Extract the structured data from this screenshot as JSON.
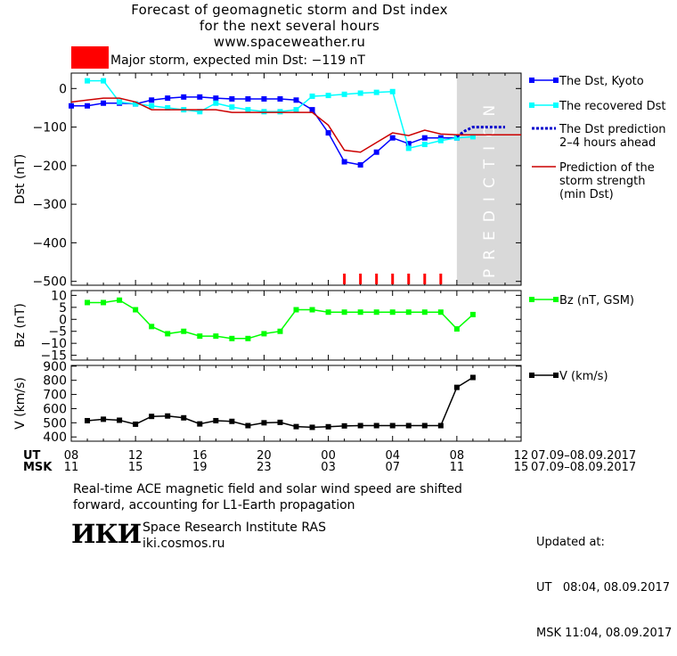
{
  "header": {
    "title": "Forecast of geomagnetic storm and Dst index",
    "subtitle": "for the next several hours",
    "site": "www.spaceweather.ru"
  },
  "storm": {
    "label": "Major storm, expected min Dst: −119 nT",
    "color": "#ff0000"
  },
  "time_axis": {
    "ut_label": "UT",
    "msk_label": "MSK",
    "ut_ticks": [
      "08",
      "12",
      "16",
      "20",
      "00",
      "04",
      "08",
      "12"
    ],
    "msk_ticks": [
      "11",
      "15",
      "19",
      "23",
      "03",
      "07",
      "11",
      "15"
    ],
    "ut_range": "07.09–08.09.2017",
    "msk_range": "07.09–08.09.2017"
  },
  "chart_data": [
    {
      "type": "line",
      "ylabel": "Dst (nT)",
      "ylim": [
        -510,
        40
      ],
      "yticks": [
        0,
        -100,
        -200,
        -300,
        -400,
        -500
      ],
      "ytick_labels": [
        "0",
        "−100",
        "−200",
        "−300",
        "−400",
        "−500"
      ],
      "prediction_region": {
        "x_from": 24,
        "x_to": 28,
        "label": "PREDICTION"
      },
      "series": [
        {
          "name": "The Dst, Kyoto",
          "color": "#0000ff",
          "marker": "square",
          "x": [
            0,
            1,
            2,
            3,
            4,
            5,
            6,
            7,
            8,
            9,
            10,
            11,
            12,
            13,
            14,
            15,
            16,
            17,
            18,
            19,
            20,
            21,
            22,
            23,
            24
          ],
          "y": [
            -45,
            -45,
            -38,
            -38,
            -40,
            -30,
            -25,
            -22,
            -22,
            -25,
            -27,
            -27,
            -27,
            -27,
            -30,
            -55,
            -115,
            -190,
            -198,
            -165,
            -128,
            -143,
            -128,
            -128,
            -128
          ]
        },
        {
          "name": "The recovered Dst",
          "color": "#00ffff",
          "marker": "square",
          "x": [
            1,
            2,
            3,
            4,
            5,
            6,
            7,
            8,
            9,
            10,
            11,
            12,
            13,
            14,
            15,
            16,
            17,
            18,
            19,
            20,
            21,
            22,
            23,
            24,
            25
          ],
          "y": [
            20,
            20,
            -35,
            -40,
            -45,
            -50,
            -55,
            -60,
            -38,
            -48,
            -55,
            -60,
            -60,
            -55,
            -20,
            -18,
            -15,
            -12,
            -10,
            -8,
            -155,
            -145,
            -135,
            -128,
            -125
          ]
        },
        {
          "name": "The Dst prediction\n2–4 hours ahead",
          "color": "#0000cc",
          "dashed": true,
          "x": [
            24,
            24.5,
            25,
            26,
            27
          ],
          "y": [
            -125,
            -110,
            -100,
            -100,
            -100
          ]
        },
        {
          "name": "Prediction of the\nstorm strength\n(min Dst)",
          "color": "#cc0000",
          "x": [
            0,
            1,
            2,
            3,
            4,
            5,
            6,
            7,
            8,
            9,
            10,
            11,
            12,
            13,
            14,
            15,
            16,
            17,
            18,
            19,
            20,
            21,
            22,
            23,
            24,
            25,
            26,
            27,
            28
          ],
          "y": [
            -35,
            -30,
            -25,
            -25,
            -35,
            -55,
            -55,
            -55,
            -55,
            -55,
            -62,
            -62,
            -62,
            -62,
            -62,
            -62,
            -95,
            -160,
            -165,
            -140,
            -115,
            -122,
            -108,
            -118,
            -120,
            -120,
            -120,
            -120,
            -120
          ]
        }
      ],
      "kp_ticks": {
        "color": "#ff0000",
        "x": [
          17,
          18,
          19,
          20,
          21,
          22,
          23
        ]
      }
    },
    {
      "type": "line",
      "ylabel": "Bz (nT)",
      "ylim": [
        -17,
        12
      ],
      "yticks": [
        10,
        5,
        0,
        -5,
        -10,
        -15
      ],
      "ytick_labels": [
        "10",
        "5",
        "0",
        "−5",
        "−10",
        "−15"
      ],
      "series": [
        {
          "name": "Bz (nT, GSM)",
          "color": "#00ff00",
          "marker": "square",
          "x": [
            1,
            2,
            3,
            4,
            5,
            6,
            7,
            8,
            9,
            10,
            11,
            12,
            13,
            14,
            15,
            16,
            17,
            18,
            19,
            20,
            21,
            22,
            23,
            24,
            25
          ],
          "y": [
            7,
            7,
            8,
            4,
            -3,
            -6,
            -5,
            -7,
            -7,
            -8,
            -8,
            -6,
            -5,
            4,
            4,
            3,
            3,
            3,
            3,
            3,
            3,
            3,
            3,
            -4,
            2
          ]
        }
      ]
    },
    {
      "type": "line",
      "ylabel": "V (km/s)",
      "ylim": [
        370,
        905
      ],
      "yticks": [
        400,
        500,
        600,
        700,
        800,
        900
      ],
      "ytick_labels": [
        "400",
        "500",
        "600",
        "700",
        "800",
        "900"
      ],
      "series": [
        {
          "name": "V (km/s)",
          "color": "#000000",
          "marker": "square",
          "x": [
            1,
            2,
            3,
            4,
            5,
            6,
            7,
            8,
            9,
            10,
            11,
            12,
            13,
            14,
            15,
            16,
            17,
            18,
            19,
            20,
            21,
            22,
            23,
            24,
            25
          ],
          "y": [
            515,
            525,
            518,
            490,
            545,
            548,
            535,
            492,
            515,
            510,
            480,
            500,
            503,
            473,
            468,
            472,
            478,
            480,
            480,
            480,
            480,
            480,
            480,
            750,
            820
          ]
        }
      ]
    }
  ],
  "footer": {
    "note_line1": "Real-time ACE magnetic field and solar wind speed are shifted",
    "note_line2": "forward, accounting for L1-Earth propagation",
    "logo": "ИКИ",
    "institute": "Space Research Institute RAS",
    "site": "iki.cosmos.ru",
    "updated_label": "Updated at:",
    "updated_ut": "UT   08:04, 08.09.2017",
    "updated_msk": "MSK 11:04, 08.09.2017"
  }
}
